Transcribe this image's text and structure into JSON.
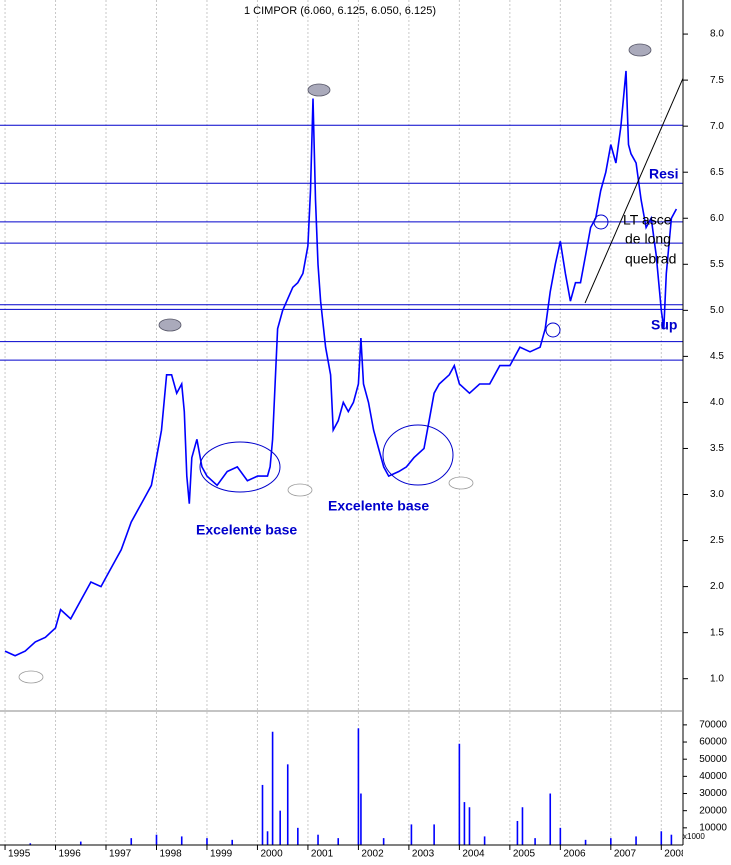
{
  "chart_data": [
    {
      "type": "line",
      "title": "1 CIMPOR (6.060, 6.125, 6.050, 6.125)",
      "x": [
        1995.0,
        1995.2,
        1995.4,
        1995.6,
        1995.8,
        1996.0,
        1996.1,
        1996.3,
        1996.5,
        1996.7,
        1996.9,
        1997.0,
        1997.2,
        1997.3,
        1997.5,
        1997.7,
        1997.8,
        1997.9,
        1998.0,
        1998.1,
        1998.2,
        1998.3,
        1998.4,
        1998.5,
        1998.55,
        1998.6,
        1998.65,
        1998.7,
        1998.8,
        1998.9,
        1999.0,
        1999.2,
        1999.4,
        1999.6,
        1999.8,
        2000.0,
        2000.2,
        2000.25,
        2000.3,
        2000.35,
        2000.4,
        2000.5,
        2000.7,
        2000.8,
        2000.9,
        2001.0,
        2001.05,
        2001.1,
        2001.15,
        2001.2,
        2001.25,
        2001.35,
        2001.45,
        2001.5,
        2001.6,
        2001.7,
        2001.8,
        2001.9,
        2002.0,
        2002.05,
        2002.1,
        2002.2,
        2002.3,
        2002.4,
        2002.5,
        2002.6,
        2002.8,
        2002.95,
        2003.1,
        2003.3,
        2003.4,
        2003.5,
        2003.6,
        2003.8,
        2003.9,
        2004.0,
        2004.2,
        2004.4,
        2004.6,
        2004.8,
        2005.0,
        2005.2,
        2005.4,
        2005.6,
        2005.7,
        2005.8,
        2005.9,
        2006.0,
        2006.1,
        2006.2,
        2006.3,
        2006.4,
        2006.5,
        2006.6,
        2006.7,
        2006.8,
        2006.9,
        2007.0,
        2007.1,
        2007.2,
        2007.3,
        2007.35,
        2007.4,
        2007.5,
        2007.6,
        2007.7,
        2007.8,
        2007.9,
        2008.0,
        2008.05,
        2008.1,
        2008.2,
        2008.3
      ],
      "series": [
        {
          "color": "#0000ff",
          "values": [
            1.3,
            1.25,
            1.3,
            1.4,
            1.45,
            1.55,
            1.75,
            1.65,
            1.85,
            2.05,
            2.0,
            2.1,
            2.3,
            2.4,
            2.7,
            2.9,
            3.0,
            3.1,
            3.4,
            3.7,
            4.3,
            4.3,
            4.1,
            4.2,
            3.9,
            3.2,
            2.9,
            3.4,
            3.6,
            3.3,
            3.2,
            3.1,
            3.25,
            3.3,
            3.15,
            3.2,
            3.2,
            3.3,
            3.6,
            4.2,
            4.8,
            5.0,
            5.25,
            5.3,
            5.4,
            5.7,
            6.3,
            7.3,
            6.2,
            5.5,
            5.1,
            4.6,
            4.3,
            3.7,
            3.8,
            4.0,
            3.9,
            4.0,
            4.2,
            4.7,
            4.2,
            4.0,
            3.7,
            3.5,
            3.3,
            3.2,
            3.25,
            3.3,
            3.4,
            3.5,
            3.8,
            4.1,
            4.2,
            4.3,
            4.4,
            4.2,
            4.1,
            4.2,
            4.2,
            4.4,
            4.4,
            4.6,
            4.55,
            4.6,
            4.8,
            5.2,
            5.5,
            5.75,
            5.4,
            5.1,
            5.3,
            5.3,
            5.6,
            5.9,
            6.0,
            6.3,
            6.5,
            6.8,
            6.6,
            7.0,
            7.6,
            6.8,
            6.7,
            6.6,
            6.2,
            5.9,
            6.0,
            5.6,
            5.0,
            4.8,
            5.4,
            6.0,
            6.1
          ]
        }
      ],
      "xlim": [
        1994.9,
        2008.43
      ],
      "xticks": [
        1995,
        1996,
        1997,
        1998,
        1999,
        2000,
        2001,
        2002,
        2003,
        2004,
        2005,
        2006,
        2007,
        2008
      ],
      "ylim": [
        0.66,
        8.37
      ],
      "yticks": [
        {
          "value": 1,
          "label": "1.0"
        },
        1.5,
        {
          "value": 2,
          "label": "2.0"
        },
        2.5,
        {
          "value": 3,
          "label": "3.0"
        },
        3.5,
        {
          "value": 4,
          "label": "4.0"
        },
        4.5,
        {
          "value": 5,
          "label": "5.0"
        },
        5.5,
        {
          "value": 6,
          "label": "6.0"
        },
        6.5,
        {
          "value": 7,
          "label": "7.0"
        },
        7.5,
        {
          "value": 8,
          "label": "8.0"
        }
      ],
      "horizontal_lines": [
        7.01,
        6.38,
        5.96,
        5.73,
        5.06,
        5.01,
        4.66,
        4.46
      ],
      "horizontal_line_color": "#0000cc",
      "trend_line": {
        "x": [
          2006.49,
          2008.43
        ],
        "y": [
          5.08,
          7.52
        ]
      },
      "annotations": [
        "Excelente base",
        "Excelente base",
        "Resi",
        "Sup",
        "LT asce",
        "de long",
        "quebrad"
      ]
    },
    {
      "type": "bar",
      "x": [
        1995.5,
        1996.5,
        1997.5,
        1998.0,
        1998.5,
        1999.0,
        1999.5,
        2000.1,
        2000.2,
        2000.3,
        2000.45,
        2000.6,
        2000.8,
        2001.2,
        2001.6,
        2002.0,
        2002.05,
        2002.5,
        2003.05,
        2003.5,
        2004.0,
        2004.1,
        2004.2,
        2004.5,
        2005.15,
        2005.25,
        2005.5,
        2005.8,
        2006.0,
        2006.5,
        2007.0,
        2007.5,
        2008.0,
        2008.2
      ],
      "values": [
        1000,
        2000,
        4000,
        6000,
        5000,
        4000,
        3000,
        35000,
        8000,
        66000,
        20000,
        47000,
        10000,
        6000,
        4000,
        68000,
        30000,
        4000,
        12000,
        12000,
        59000,
        25000,
        22000,
        5000,
        14000,
        22000,
        4000,
        30000,
        10000,
        3000,
        4000,
        5000,
        8000,
        6000
      ],
      "color": "#0000ff",
      "xlim": [
        1994.9,
        2008.43
      ],
      "ylim": [
        0,
        77500
      ],
      "yticks": [
        10000,
        20000,
        30000,
        40000,
        50000,
        60000,
        70000
      ],
      "unit_label": "x1000"
    }
  ]
}
